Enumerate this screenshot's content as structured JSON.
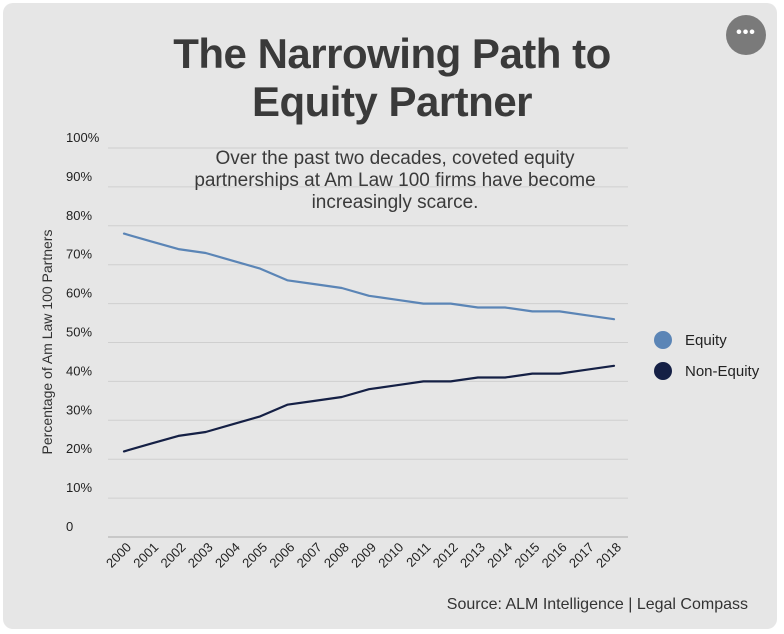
{
  "title_lines": [
    "The Narrowing Path to",
    "Equity Partner"
  ],
  "subtitle": "Over the past two decades, coveted equity partnerships at Am Law 100 firms have become increasingly scarce.",
  "source": "Source: ALM Intelligence | Legal Compass",
  "menu_label": "•••",
  "colors": {
    "equity": "#5b85b6",
    "non_equity": "#152045",
    "grid": "#cfcfcf",
    "background": "#e6e6e6"
  },
  "chart_data": {
    "type": "line",
    "title": "The Narrowing Path to Equity Partner",
    "xlabel": "",
    "ylabel": "Percentage of Am Law 100 Partners",
    "x": [
      "2000",
      "2001",
      "2002",
      "2003",
      "2004",
      "2005",
      "2006",
      "2007",
      "2008",
      "2009",
      "2010",
      "2011",
      "2012",
      "2013",
      "2014",
      "2015",
      "2016",
      "2017",
      "2018"
    ],
    "ylim": [
      0,
      100
    ],
    "yticks": [
      "0",
      "10%",
      "20%",
      "30%",
      "40%",
      "50%",
      "60%",
      "70%",
      "80%",
      "90%",
      "100%"
    ],
    "grid": true,
    "legend_position": "right",
    "series": [
      {
        "name": "Equity",
        "values": [
          78,
          76,
          74,
          73,
          71,
          69,
          66,
          65,
          64,
          62,
          61,
          60,
          60,
          59,
          59,
          58,
          58,
          57,
          56
        ]
      },
      {
        "name": "Non-Equity",
        "values": [
          22,
          24,
          26,
          27,
          29,
          31,
          34,
          35,
          36,
          38,
          39,
          40,
          40,
          41,
          41,
          42,
          42,
          43,
          44
        ]
      }
    ]
  }
}
